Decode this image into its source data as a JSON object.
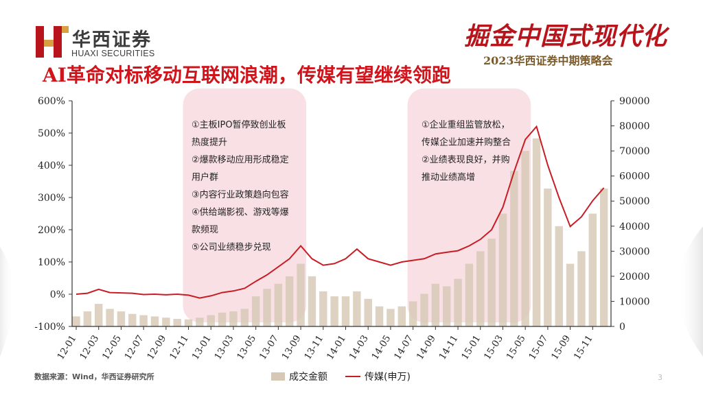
{
  "header": {
    "logo_cn": "华西证券",
    "logo_en": "HUAXI SECURITIES",
    "slogan": "掘金中国式现代化",
    "event": "2023华西证券中期策略会",
    "title": "AI革命对标移动互联网浪潮，传媒有望继续领跑"
  },
  "colors": {
    "accent": "#c81c24",
    "bars": "#d6c8b4",
    "highlight": "#f7dbe0",
    "logo_red": "#b8141c"
  },
  "annotations": {
    "left": [
      "①主板IPO暂停致创业板",
      "热度提升",
      "②爆款移动应用形成稳定",
      "用户群",
      "③内容行业政策趋向包容",
      "④供给端影视、游戏等爆",
      "款频现",
      "⑤公司业绩稳步兑现"
    ],
    "right": [
      "①企业重组监管放松，",
      "传媒企业加速并购整合",
      "②业绩表现良好，并购",
      "推动业绩高增"
    ]
  },
  "chart_data": {
    "type": "line+bar",
    "x_ticks": [
      "12-01",
      "12-03",
      "12-05",
      "12-07",
      "12-09",
      "12-11",
      "13-01",
      "13-03",
      "13-05",
      "13-07",
      "13-09",
      "13-11",
      "14-01",
      "14-03",
      "14-05",
      "14-07",
      "14-09",
      "14-11",
      "15-01",
      "15-03",
      "15-05",
      "15-07",
      "15-09",
      "15-11"
    ],
    "y_left_ticks": [
      "600%",
      "500%",
      "400%",
      "300%",
      "200%",
      "100%",
      "0%",
      "-100%"
    ],
    "y_right_ticks": [
      "90000",
      "80000",
      "70000",
      "60000",
      "50000",
      "40000",
      "30000",
      "20000",
      "10000",
      "0"
    ],
    "y_left_range": [
      -100,
      600
    ],
    "y_right_range": [
      0,
      90000
    ],
    "highlight_periods": [
      [
        "12-11",
        "13-09"
      ],
      [
        "14-07",
        "15-05"
      ]
    ],
    "series": [
      {
        "name": "传媒(申万)",
        "axis": "left",
        "type": "line",
        "points": [
          [
            "12-01",
            0
          ],
          [
            "12-02",
            3
          ],
          [
            "12-03",
            15
          ],
          [
            "12-04",
            5
          ],
          [
            "12-05",
            4
          ],
          [
            "12-06",
            3
          ],
          [
            "12-07",
            -1
          ],
          [
            "12-08",
            0
          ],
          [
            "12-09",
            -2
          ],
          [
            "12-10",
            0
          ],
          [
            "12-11",
            -3
          ],
          [
            "12-12",
            -12
          ],
          [
            "13-01",
            -5
          ],
          [
            "13-02",
            5
          ],
          [
            "13-03",
            10
          ],
          [
            "13-04",
            18
          ],
          [
            "13-05",
            40
          ],
          [
            "13-06",
            60
          ],
          [
            "13-07",
            85
          ],
          [
            "13-08",
            110
          ],
          [
            "13-09",
            150
          ],
          [
            "13-10",
            110
          ],
          [
            "13-11",
            90
          ],
          [
            "13-12",
            95
          ],
          [
            "14-01",
            110
          ],
          [
            "14-02",
            140
          ],
          [
            "14-03",
            110
          ],
          [
            "14-04",
            100
          ],
          [
            "14-05",
            90
          ],
          [
            "14-06",
            100
          ],
          [
            "14-07",
            105
          ],
          [
            "14-08",
            110
          ],
          [
            "14-09",
            125
          ],
          [
            "14-10",
            130
          ],
          [
            "14-11",
            135
          ],
          [
            "14-12",
            150
          ],
          [
            "15-01",
            170
          ],
          [
            "15-02",
            200
          ],
          [
            "15-03",
            270
          ],
          [
            "15-04",
            380
          ],
          [
            "15-05",
            480
          ],
          [
            "15-06",
            520
          ],
          [
            "15-07",
            400
          ],
          [
            "15-08",
            300
          ],
          [
            "15-09",
            210
          ],
          [
            "15-10",
            240
          ],
          [
            "15-11",
            290
          ],
          [
            "15-12",
            330
          ]
        ]
      },
      {
        "name": "成交金额",
        "axis": "right",
        "type": "bar",
        "points": [
          [
            "12-01",
            4000
          ],
          [
            "12-02",
            6000
          ],
          [
            "12-03",
            9000
          ],
          [
            "12-04",
            7000
          ],
          [
            "12-05",
            6000
          ],
          [
            "12-06",
            5000
          ],
          [
            "12-07",
            4500
          ],
          [
            "12-08",
            4000
          ],
          [
            "12-09",
            3500
          ],
          [
            "12-10",
            3000
          ],
          [
            "12-11",
            2800
          ],
          [
            "12-12",
            3500
          ],
          [
            "13-01",
            4500
          ],
          [
            "13-02",
            5500
          ],
          [
            "13-03",
            6000
          ],
          [
            "13-04",
            7000
          ],
          [
            "13-05",
            12000
          ],
          [
            "13-06",
            15000
          ],
          [
            "13-07",
            17000
          ],
          [
            "13-08",
            20000
          ],
          [
            "13-09",
            25000
          ],
          [
            "13-10",
            20000
          ],
          [
            "13-11",
            14000
          ],
          [
            "13-12",
            12000
          ],
          [
            "14-01",
            12000
          ],
          [
            "14-02",
            14000
          ],
          [
            "14-03",
            11000
          ],
          [
            "14-04",
            8000
          ],
          [
            "14-05",
            7000
          ],
          [
            "14-06",
            8000
          ],
          [
            "14-07",
            10000
          ],
          [
            "14-08",
            13000
          ],
          [
            "14-09",
            17000
          ],
          [
            "14-10",
            16000
          ],
          [
            "14-11",
            19000
          ],
          [
            "14-12",
            25000
          ],
          [
            "15-01",
            30000
          ],
          [
            "15-02",
            35000
          ],
          [
            "15-03",
            45000
          ],
          [
            "15-04",
            62000
          ],
          [
            "15-05",
            70000
          ],
          [
            "15-06",
            75000
          ],
          [
            "15-07",
            55000
          ],
          [
            "15-08",
            40000
          ],
          [
            "15-09",
            25000
          ],
          [
            "15-10",
            30000
          ],
          [
            "15-11",
            45000
          ],
          [
            "15-12",
            55000
          ]
        ]
      }
    ]
  },
  "footer": {
    "source": "数据来源：Wind，华西证券研究所",
    "legend_bar": "成交金额",
    "legend_line": "传媒(申万)",
    "page": "3"
  }
}
